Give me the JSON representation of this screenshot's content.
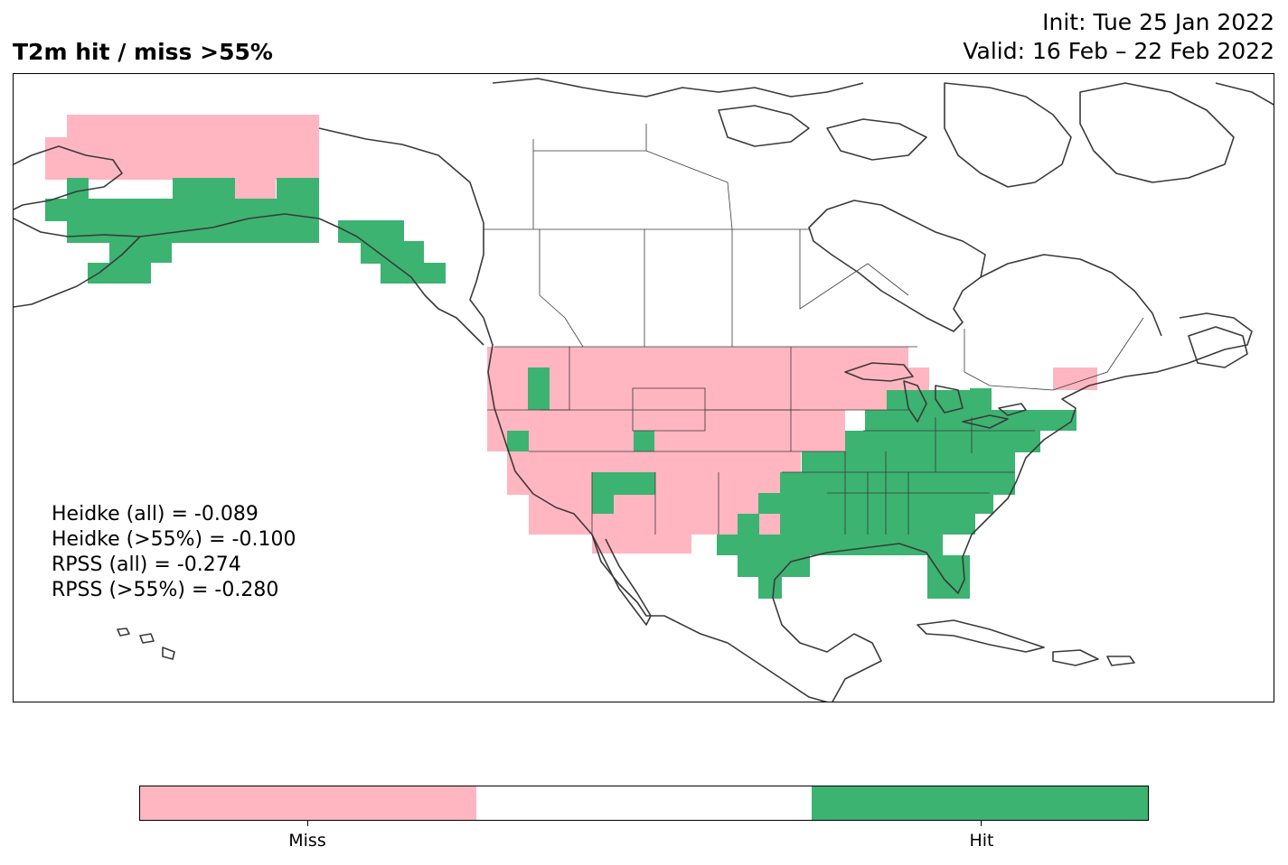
{
  "header": {
    "title": "T2m hit / miss  >55%",
    "init": "Init: Tue 25 Jan 2022",
    "valid": "Valid: 16 Feb – 22 Feb 2022"
  },
  "scores": [
    "Heidke (all) = -0.089",
    "Heidke (>55%) = -0.100",
    "RPSS (all) = -0.274",
    "RPSS (>55%) = -0.280"
  ],
  "legend": {
    "colors": {
      "miss": "#ffb6c1",
      "neutral": "#ffffff",
      "hit": "#3cb371"
    },
    "miss_label": "Miss",
    "hit_label": "Hit"
  },
  "map": {
    "region": "North America",
    "hit_color": "#3cb371",
    "miss_color": "#ffb6c1",
    "coastline_color": "#3a3a3a"
  }
}
